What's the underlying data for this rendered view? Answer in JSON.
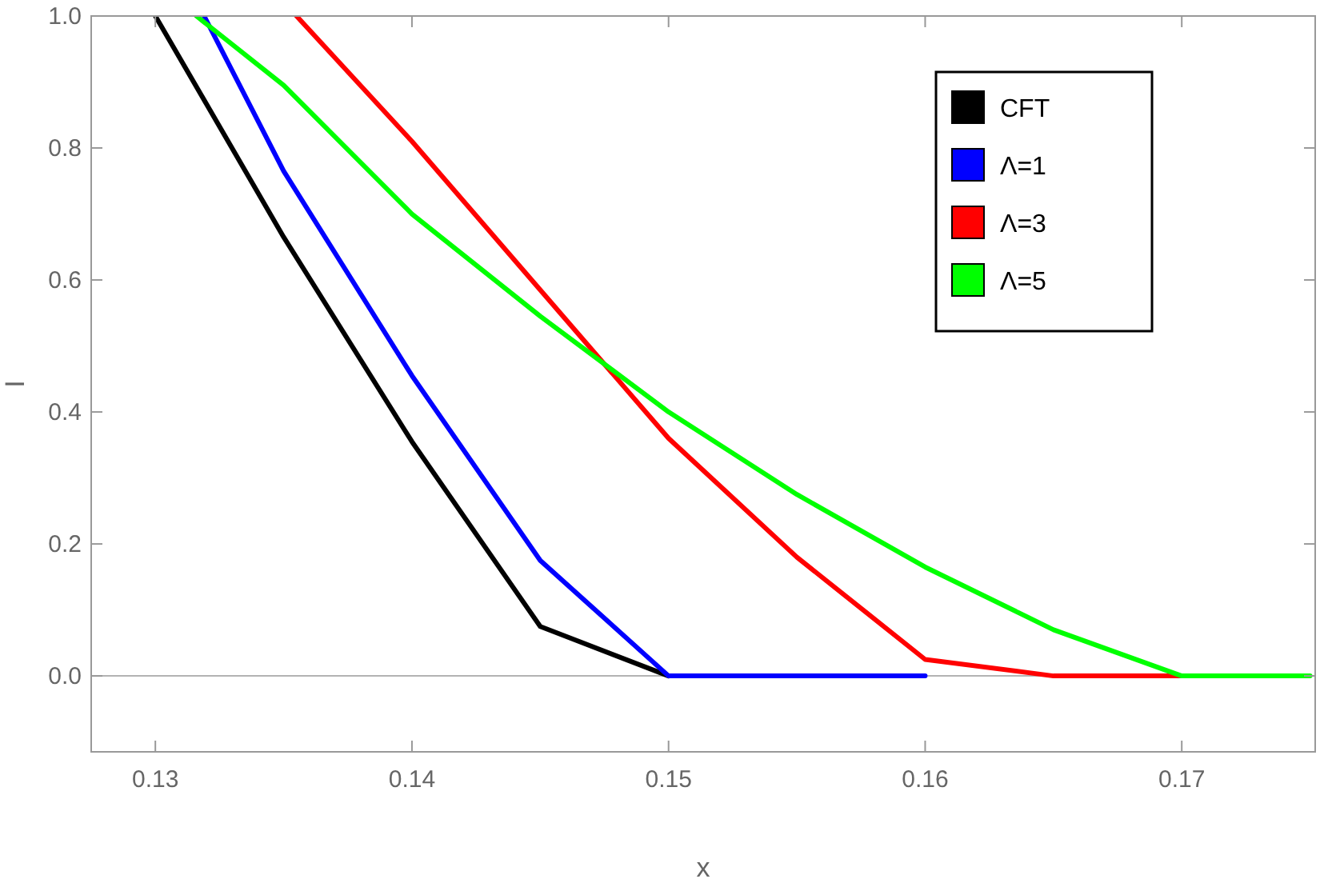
{
  "chart_data": {
    "type": "line",
    "xlabel": "x",
    "ylabel": "I",
    "xlim": [
      0.1275,
      0.1752
    ],
    "ylim": [
      -0.115,
      1.0
    ],
    "xticks": [
      {
        "value": 0.13,
        "label": "0.13"
      },
      {
        "value": 0.14,
        "label": "0.14"
      },
      {
        "value": 0.15,
        "label": "0.15"
      },
      {
        "value": 0.16,
        "label": "0.16"
      },
      {
        "value": 0.17,
        "label": "0.17"
      }
    ],
    "yticks": [
      {
        "value": 0,
        "label": "0.0"
      },
      {
        "value": 0.2,
        "label": "0.2"
      },
      {
        "value": 0.4,
        "label": "0.4"
      },
      {
        "value": 0.6,
        "label": "0.6"
      },
      {
        "value": 0.8,
        "label": "0.8"
      },
      {
        "value": 1,
        "label": "1.0"
      }
    ],
    "grid": false,
    "legend": "top right",
    "marker": "none",
    "line_style": "solid",
    "ref_lines": [
      {
        "axis": "y",
        "value": 0,
        "color": "#b3b3b3"
      }
    ],
    "series": [
      {
        "name": "CFT",
        "color": "#000000",
        "x": [
          0.13,
          0.135,
          0.14,
          0.145,
          0.15
        ],
        "values": [
          1.0,
          0.665,
          0.355,
          0.075,
          0
        ]
      },
      {
        "name": "Λ=1",
        "color": "#0000ff",
        "x": [
          0.1319,
          0.135,
          0.14,
          0.145,
          0.15,
          0.155,
          0.16
        ],
        "values": [
          1.0,
          0.765,
          0.455,
          0.175,
          0,
          0,
          0
        ]
      },
      {
        "name": "Λ=3",
        "color": "#ff0000",
        "x": [
          0.1355,
          0.14,
          0.145,
          0.15,
          0.155,
          0.16,
          0.165,
          0.17
        ],
        "values": [
          1.0,
          0.81,
          0.585,
          0.36,
          0.18,
          0.025,
          0,
          0
        ]
      },
      {
        "name": "Λ=5",
        "color": "#00ff00",
        "x": [
          0.1316,
          0.135,
          0.14,
          0.145,
          0.15,
          0.155,
          0.16,
          0.165,
          0.17,
          0.175
        ],
        "values": [
          1.0,
          0.895,
          0.7,
          0.545,
          0.4,
          0.275,
          0.165,
          0.07,
          0,
          0
        ]
      }
    ]
  }
}
